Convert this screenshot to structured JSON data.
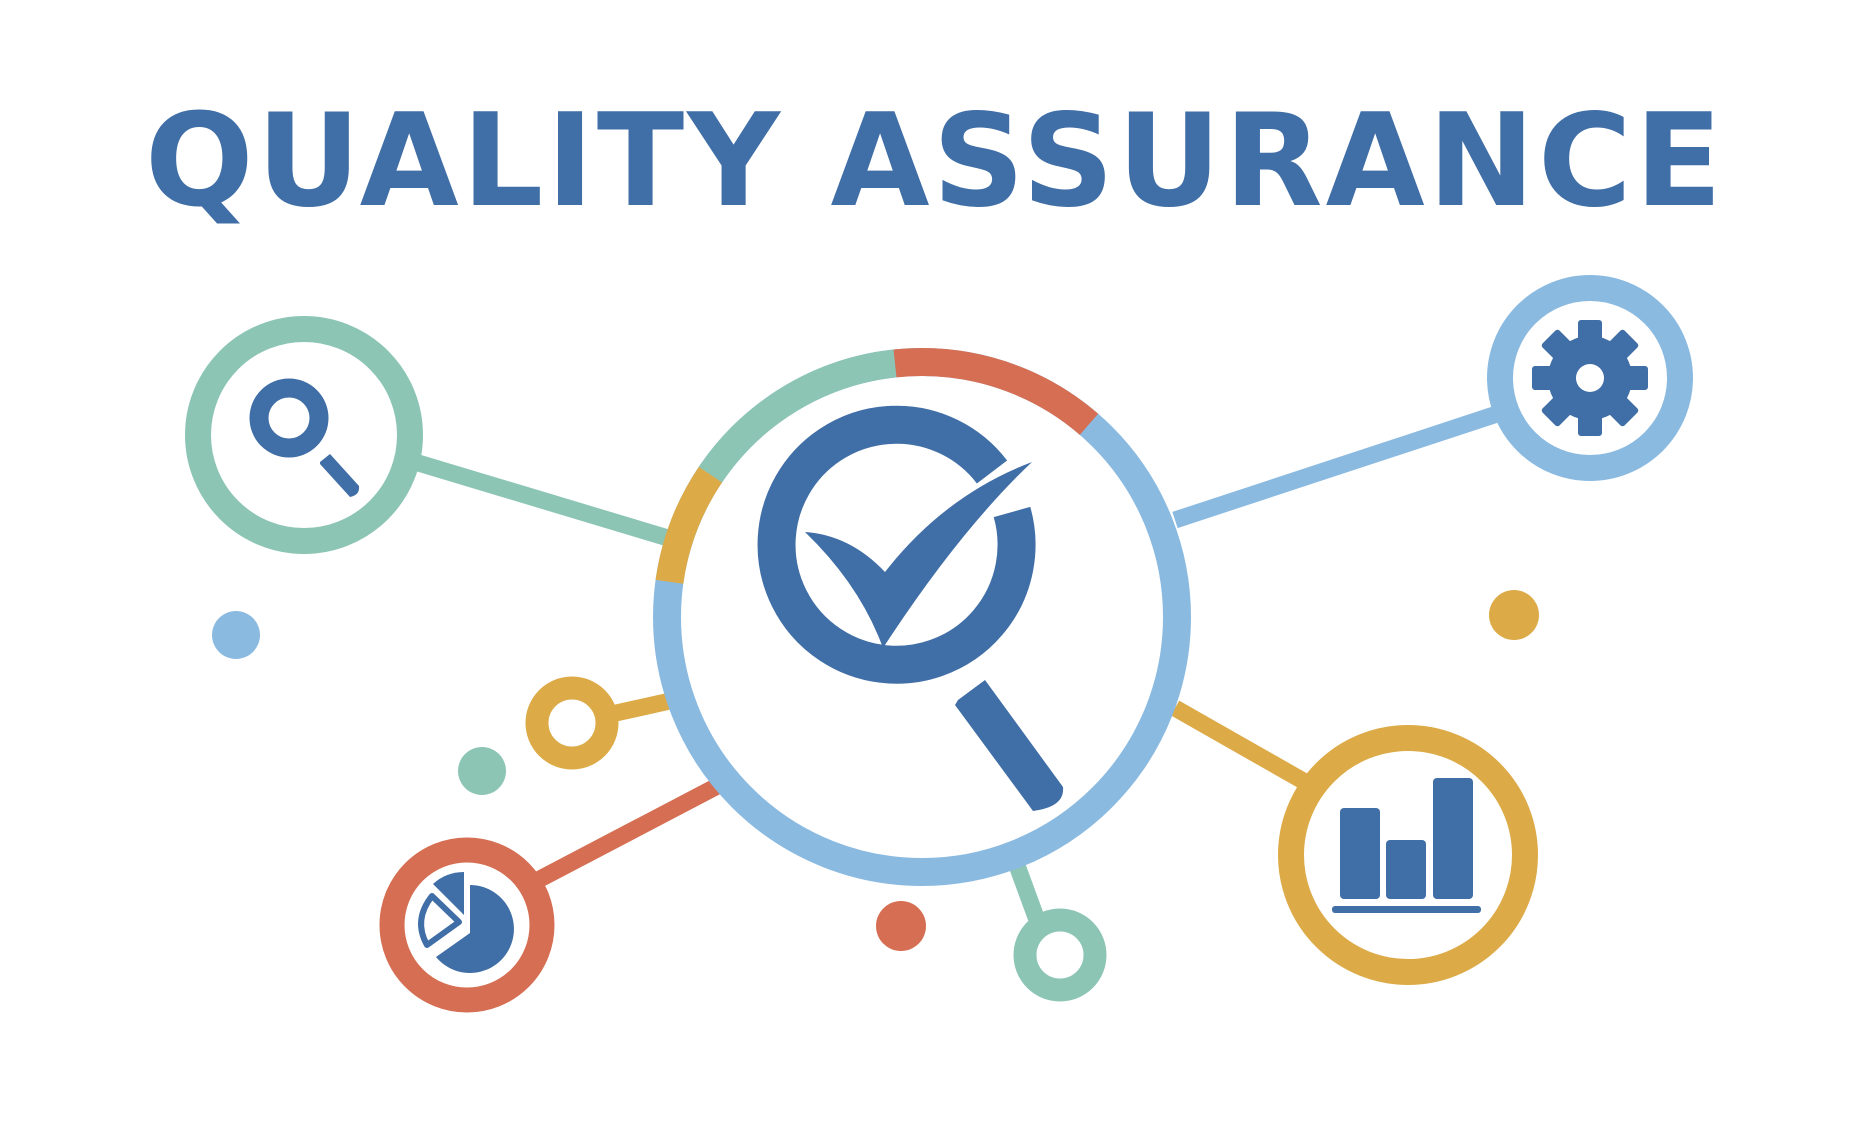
{
  "title": "QUALITY ASSURANCE",
  "colors": {
    "title": "#406ea6",
    "icon": "#406ea6",
    "teal": "#8dc5b5",
    "blue": "#8bbae1",
    "gold": "#dcaa47",
    "orange": "#d56e52",
    "background": "#ffffff"
  },
  "icons": [
    "checkmark-magnifier-icon",
    "magnifier-icon",
    "gear-icon",
    "pie-chart-icon",
    "bar-chart-icon"
  ]
}
